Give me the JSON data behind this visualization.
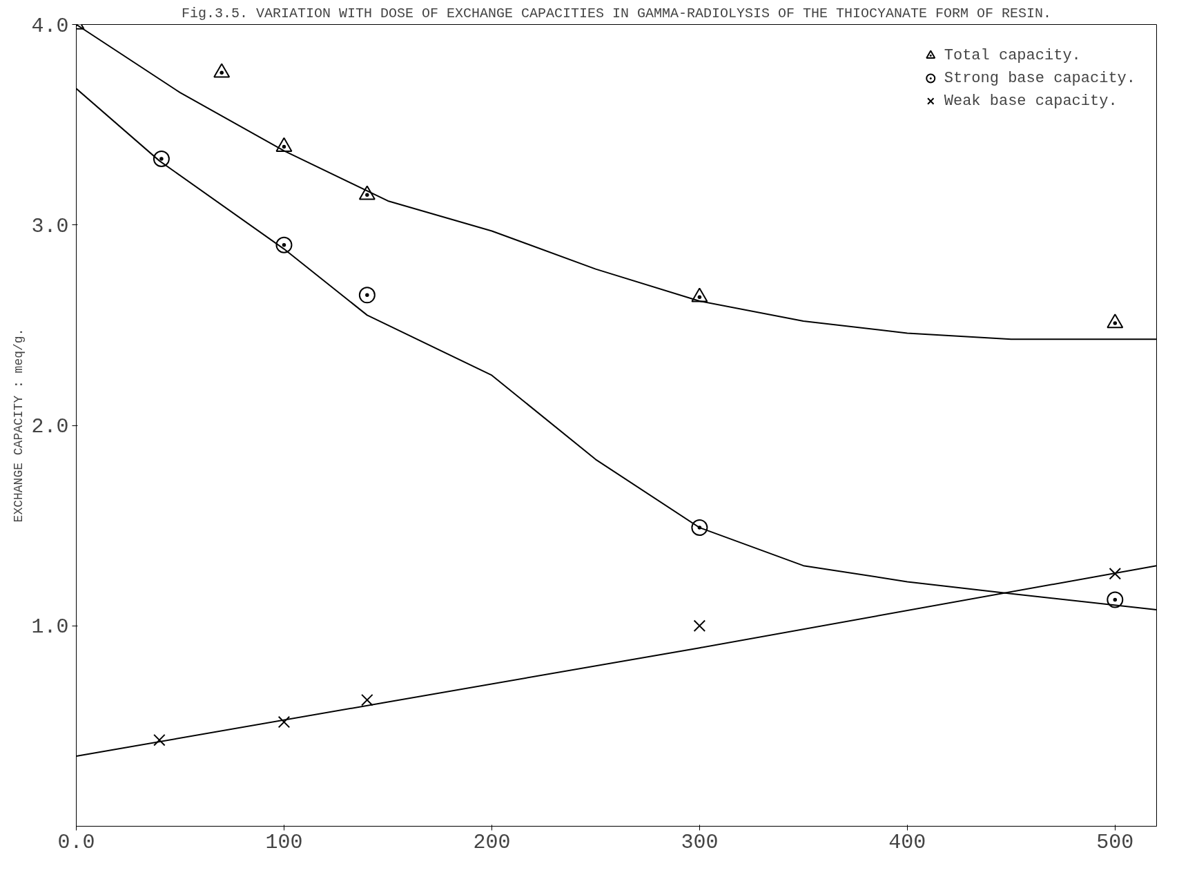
{
  "chart_data": {
    "type": "line",
    "title": "Fig.3.5. VARIATION WITH DOSE OF EXCHANGE CAPACITIES IN GAMMA-RADIOLYSIS OF THE THIOCYANATE FORM OF RESIN.",
    "ylabel": "EXCHANGE CAPACITY : meq/g.",
    "xlim": [
      0,
      520
    ],
    "ylim": [
      0,
      4.0
    ],
    "xticks": [
      {
        "value": 0,
        "label": "0.0"
      },
      100,
      200,
      300,
      400,
      500
    ],
    "yticks": [
      {
        "value": 1,
        "label": "1.0"
      },
      {
        "value": 2,
        "label": "2.0"
      },
      {
        "value": 3,
        "label": "3.0"
      },
      {
        "value": 4,
        "label": "4.0"
      }
    ],
    "grid": false,
    "legend": "top right",
    "series": [
      {
        "type": "scatter",
        "name": "Total capacity.",
        "color": "#000000",
        "marker": "triangle",
        "x": [
          0,
          70,
          100,
          140,
          300,
          500
        ],
        "values": [
          4.0,
          3.76,
          3.39,
          3.15,
          2.64,
          2.51
        ]
      },
      {
        "type": "scatter",
        "name": "Strong base capacity.",
        "color": "#000000",
        "marker": "circle",
        "x": [
          41,
          100,
          140,
          300,
          500
        ],
        "values": [
          3.33,
          2.9,
          2.65,
          1.49,
          1.13
        ]
      },
      {
        "type": "scatter",
        "name": "Weak base capacity.",
        "color": "#000000",
        "marker": "cross",
        "x": [
          40,
          100,
          140,
          300,
          500
        ],
        "values": [
          0.43,
          0.52,
          0.63,
          1.0,
          1.26
        ]
      },
      {
        "color": "#000000",
        "marker": "none",
        "x": [
          0,
          50,
          100,
          150,
          200,
          250,
          300,
          350,
          400,
          450,
          500,
          520
        ],
        "values": [
          4.0,
          3.66,
          3.37,
          3.12,
          2.97,
          2.78,
          2.62,
          2.52,
          2.46,
          2.43,
          2.43,
          2.43
        ]
      },
      {
        "color": "#000000",
        "marker": "none",
        "x": [
          0,
          40,
          100,
          140,
          200,
          250,
          300,
          350,
          400,
          450,
          520
        ],
        "values": [
          3.68,
          3.32,
          2.88,
          2.55,
          2.25,
          1.83,
          1.49,
          1.3,
          1.22,
          1.16,
          1.08
        ]
      },
      {
        "color": "#000000",
        "marker": "none",
        "x": [
          0,
          300,
          520
        ],
        "values": [
          0.35,
          0.89,
          1.3
        ]
      }
    ]
  }
}
